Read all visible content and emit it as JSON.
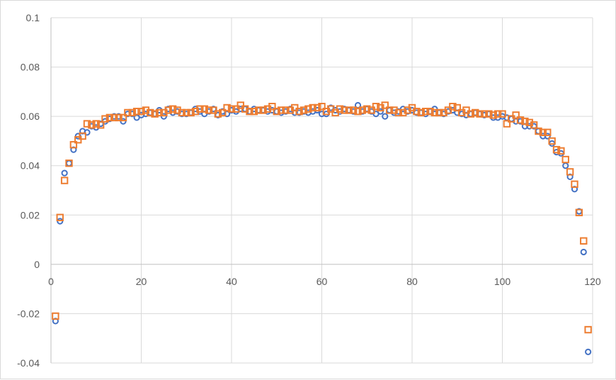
{
  "chart_data": {
    "type": "scatter",
    "title": "",
    "xlabel": "",
    "ylabel": "",
    "xlim": [
      0,
      120
    ],
    "ylim": [
      -0.04,
      0.1
    ],
    "x_ticks": [
      0,
      20,
      40,
      60,
      80,
      100,
      120
    ],
    "y_ticks": [
      -0.04,
      -0.02,
      0,
      0.02,
      0.04,
      0.06,
      0.08,
      0.1
    ],
    "x_tick_labels": [
      "0",
      "20",
      "40",
      "60",
      "80",
      "100",
      "120"
    ],
    "y_tick_labels": [
      "-0.04",
      "-0.02",
      "0",
      "0.02",
      "0.04",
      "0.06",
      "0.08",
      "0.1"
    ],
    "grid": true,
    "legend": "none",
    "series": [
      {
        "marker": "circle",
        "color": "#4472C4",
        "x": [
          1,
          2,
          3,
          4,
          5,
          6,
          7,
          8,
          9,
          10,
          11,
          12,
          13,
          14,
          15,
          16,
          17,
          18,
          19,
          20,
          21,
          22,
          23,
          24,
          25,
          26,
          27,
          28,
          29,
          30,
          31,
          32,
          33,
          34,
          35,
          36,
          37,
          38,
          39,
          40,
          41,
          42,
          43,
          44,
          45,
          46,
          47,
          48,
          49,
          50,
          51,
          52,
          53,
          54,
          55,
          56,
          57,
          58,
          59,
          60,
          61,
          62,
          63,
          64,
          65,
          66,
          67,
          68,
          69,
          70,
          71,
          72,
          73,
          74,
          75,
          76,
          77,
          78,
          79,
          80,
          81,
          82,
          83,
          84,
          85,
          86,
          87,
          88,
          89,
          90,
          91,
          92,
          93,
          94,
          95,
          96,
          97,
          98,
          99,
          100,
          101,
          102,
          103,
          104,
          105,
          106,
          107,
          108,
          109,
          110,
          111,
          112,
          113,
          114,
          115,
          116,
          117,
          118,
          119
        ],
        "y": [
          -0.023,
          0.0175,
          0.037,
          0.041,
          0.0465,
          0.052,
          0.054,
          0.0535,
          0.056,
          0.0555,
          0.057,
          0.058,
          0.059,
          0.06,
          0.06,
          0.058,
          0.061,
          0.061,
          0.0595,
          0.0605,
          0.061,
          0.0615,
          0.061,
          0.0625,
          0.06,
          0.063,
          0.0615,
          0.062,
          0.061,
          0.061,
          0.0615,
          0.063,
          0.062,
          0.061,
          0.062,
          0.063,
          0.0605,
          0.062,
          0.061,
          0.0625,
          0.062,
          0.063,
          0.063,
          0.062,
          0.063,
          0.0625,
          0.0625,
          0.062,
          0.0625,
          0.062,
          0.0615,
          0.062,
          0.063,
          0.0615,
          0.0615,
          0.062,
          0.0615,
          0.062,
          0.0625,
          0.061,
          0.061,
          0.0635,
          0.0625,
          0.062,
          0.063,
          0.0625,
          0.062,
          0.0645,
          0.062,
          0.063,
          0.062,
          0.061,
          0.062,
          0.06,
          0.0625,
          0.0615,
          0.062,
          0.063,
          0.062,
          0.0625,
          0.0615,
          0.0615,
          0.061,
          0.062,
          0.063,
          0.0615,
          0.061,
          0.062,
          0.0625,
          0.0615,
          0.061,
          0.0605,
          0.061,
          0.0615,
          0.061,
          0.0605,
          0.061,
          0.0595,
          0.0595,
          0.06,
          0.0595,
          0.059,
          0.058,
          0.058,
          0.056,
          0.056,
          0.056,
          0.054,
          0.052,
          0.052,
          0.049,
          0.0455,
          0.045,
          0.04,
          0.0355,
          0.0305,
          0.0215,
          0.005,
          -0.0355
        ]
      },
      {
        "marker": "square",
        "color": "#ED7D31",
        "x": [
          1,
          2,
          3,
          4,
          5,
          6,
          7,
          8,
          9,
          10,
          11,
          12,
          13,
          14,
          15,
          16,
          17,
          18,
          19,
          20,
          21,
          22,
          23,
          24,
          25,
          26,
          27,
          28,
          29,
          30,
          31,
          32,
          33,
          34,
          35,
          36,
          37,
          38,
          39,
          40,
          41,
          42,
          43,
          44,
          45,
          46,
          47,
          48,
          49,
          50,
          51,
          52,
          53,
          54,
          55,
          56,
          57,
          58,
          59,
          60,
          61,
          62,
          63,
          64,
          65,
          66,
          67,
          68,
          69,
          70,
          71,
          72,
          73,
          74,
          75,
          76,
          77,
          78,
          79,
          80,
          81,
          82,
          83,
          84,
          85,
          86,
          87,
          88,
          89,
          90,
          91,
          92,
          93,
          94,
          95,
          96,
          97,
          98,
          99,
          100,
          101,
          102,
          103,
          104,
          105,
          106,
          107,
          108,
          109,
          110,
          111,
          112,
          113,
          114,
          115,
          116,
          117,
          118,
          119
        ],
        "y": [
          -0.021,
          0.019,
          0.034,
          0.041,
          0.0485,
          0.0505,
          0.052,
          0.057,
          0.0565,
          0.057,
          0.0565,
          0.059,
          0.0595,
          0.0595,
          0.0595,
          0.0595,
          0.0615,
          0.0615,
          0.062,
          0.062,
          0.0625,
          0.0615,
          0.061,
          0.0615,
          0.0615,
          0.0625,
          0.063,
          0.0625,
          0.0615,
          0.0615,
          0.0615,
          0.062,
          0.063,
          0.063,
          0.0625,
          0.0625,
          0.061,
          0.0615,
          0.0635,
          0.063,
          0.063,
          0.0645,
          0.063,
          0.062,
          0.062,
          0.0625,
          0.0625,
          0.063,
          0.064,
          0.062,
          0.0625,
          0.0625,
          0.0625,
          0.0635,
          0.062,
          0.0625,
          0.063,
          0.0635,
          0.0635,
          0.064,
          0.062,
          0.063,
          0.0615,
          0.063,
          0.0625,
          0.0625,
          0.0625,
          0.062,
          0.0625,
          0.063,
          0.0625,
          0.064,
          0.0635,
          0.0645,
          0.0625,
          0.0625,
          0.0615,
          0.0615,
          0.0625,
          0.0635,
          0.062,
          0.0615,
          0.062,
          0.062,
          0.0615,
          0.0615,
          0.0615,
          0.0625,
          0.064,
          0.0635,
          0.0615,
          0.0625,
          0.061,
          0.0615,
          0.061,
          0.061,
          0.061,
          0.0605,
          0.061,
          0.061,
          0.057,
          0.059,
          0.0605,
          0.0585,
          0.058,
          0.0575,
          0.0565,
          0.054,
          0.0535,
          0.0535,
          0.05,
          0.0465,
          0.046,
          0.0425,
          0.0375,
          0.0325,
          0.021,
          0.0095,
          -0.0265
        ]
      }
    ]
  }
}
